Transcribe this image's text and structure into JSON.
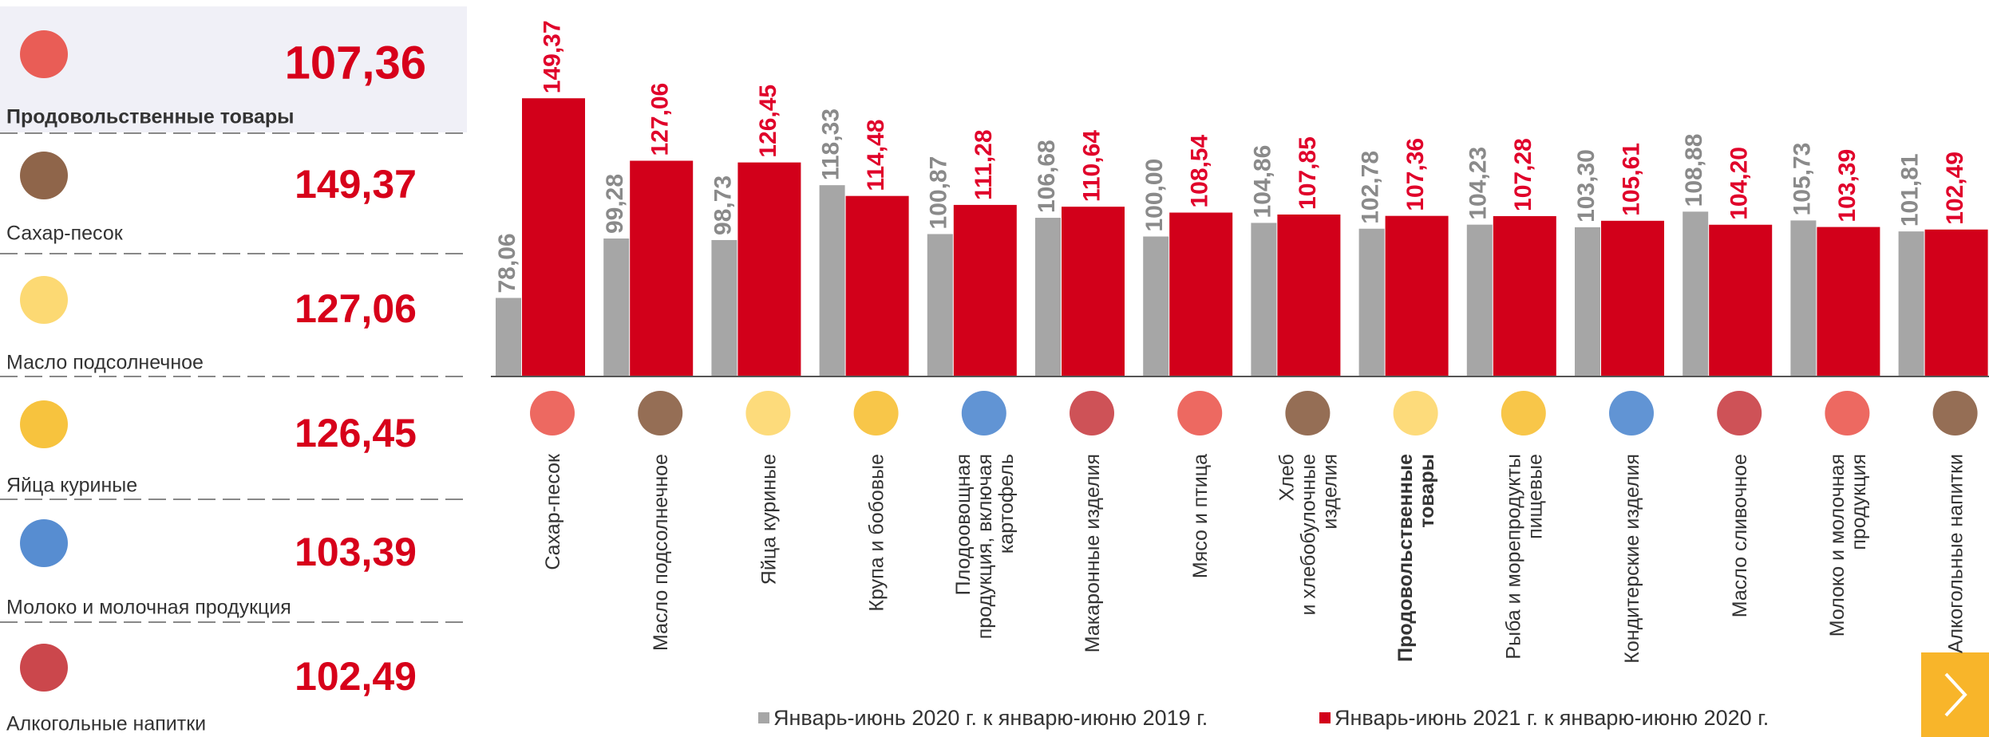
{
  "panel": {
    "items": [
      {
        "label": "Продовольственные товары",
        "value": "107,36"
      },
      {
        "label": "Сахар-песок",
        "value": "149,37"
      },
      {
        "label": "Масло подсолнечное",
        "value": "127,06"
      },
      {
        "label": "Яйца куриные",
        "value": "126,45"
      },
      {
        "label": "Молоко и молочная продукция",
        "value": "103,39"
      },
      {
        "label": "Алкогольные напитки",
        "value": "102,49"
      }
    ]
  },
  "chart_data": {
    "type": "bar",
    "categories": [
      "Сахар-песок",
      "Масло подсолнечное",
      "Яйца куриные",
      "Крупа и бобовые",
      "Плодоовощная\nпродукция, включая\nкартофель",
      "Макаронные изделия",
      "Мясо и птица",
      "Хлеб\nи хлебобулочные\nизделия",
      "Продовольственные\nтовары",
      "Рыба и морепродукты\nпищевые",
      "Кондитерские изделия",
      "Масло сливочное",
      "Молоко и молочная\nпродукция",
      "Алкогольные напитки"
    ],
    "series": [
      {
        "name": "Январь-июнь 2020 г. к январю-июню 2019 г.",
        "color": "#a6a6a6",
        "values": [
          78.06,
          99.28,
          98.73,
          118.33,
          100.87,
          106.68,
          100.0,
          104.86,
          102.78,
          104.23,
          103.3,
          108.88,
          105.73,
          101.81
        ],
        "value_labels": [
          "78,06",
          "99,28",
          "98,73",
          "118,33",
          "100,87",
          "106,68",
          "100,00",
          "104,86",
          "102,78",
          "104,23",
          "103,30",
          "108,88",
          "105,73",
          "101,81"
        ]
      },
      {
        "name": "Январь-июнь 2021 г. к январю-июню 2020 г.",
        "color": "#d2001a",
        "values": [
          149.37,
          127.06,
          126.45,
          114.48,
          111.28,
          110.64,
          108.54,
          107.85,
          107.36,
          107.28,
          105.61,
          104.2,
          103.39,
          102.49
        ],
        "value_labels": [
          "149,37",
          "127,06",
          "126,45",
          "114,48",
          "111,28",
          "110,64",
          "108,54",
          "107,85",
          "107,36",
          "107,28",
          "105,61",
          "104,20",
          "103,39",
          "102,49"
        ]
      }
    ],
    "ylim": [
      50,
      150
    ]
  }
}
